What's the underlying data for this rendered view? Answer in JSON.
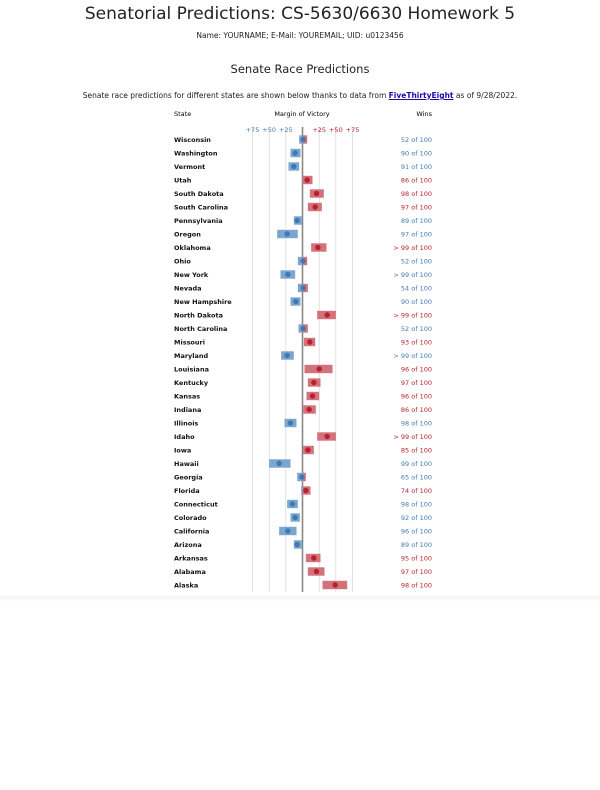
{
  "page": {
    "title": "Senatorial Predictions: CS-5630/6630 Homework 5",
    "meta": "Name: YOURNAME; E-Mail: YOUREMAIL; UID: u0123456",
    "section_title": "Senate Race Predictions",
    "intro_before": "Senate race predictions for different states are shown below thanks to data from ",
    "intro_link": "FiveThirtyEight",
    "intro_after": " as of 9/28/2022."
  },
  "colors": {
    "dem": "#3f7ab5",
    "dem_bar": "#7ba6cf",
    "rep": "#b8202f",
    "rep_bar": "#d2737b",
    "axis": "#888888"
  },
  "chart_data": {
    "type": "dot-range",
    "headers": {
      "state": "State",
      "margin": "Margin of Victory",
      "wins": "Wins"
    },
    "ticks": [
      {
        "label": "+75",
        "value": -75,
        "party": "D"
      },
      {
        "label": "+50",
        "value": -50,
        "party": "D"
      },
      {
        "label": "+25",
        "value": -25,
        "party": "D"
      },
      {
        "label": "+25",
        "value": 25,
        "party": "R"
      },
      {
        "label": "+50",
        "value": 50,
        "party": "R"
      },
      {
        "label": "+75",
        "value": 75,
        "party": "R"
      }
    ],
    "xlim": [
      -100,
      100
    ],
    "rows": [
      {
        "state": "Wisconsin",
        "margin": 1,
        "low": -5,
        "high": 7,
        "wins": "52 of 100",
        "party": "D"
      },
      {
        "state": "Washington",
        "margin": -11,
        "low": -18,
        "high": -3,
        "wins": "90 of 100",
        "party": "D"
      },
      {
        "state": "Vermont",
        "margin": -13,
        "low": -21,
        "high": -5,
        "wins": "91 of 100",
        "party": "D"
      },
      {
        "state": "Utah",
        "margin": 7,
        "low": 0,
        "high": 15,
        "wins": "86 of 100",
        "party": "R"
      },
      {
        "state": "South Dakota",
        "margin": 21,
        "low": 11,
        "high": 32,
        "wins": "98 of 100",
        "party": "R"
      },
      {
        "state": "South Carolina",
        "margin": 19,
        "low": 8,
        "high": 29,
        "wins": "97 of 100",
        "party": "R"
      },
      {
        "state": "Pennsylvania",
        "margin": -8,
        "low": -13,
        "high": -1,
        "wins": "89 of 100",
        "party": "D"
      },
      {
        "state": "Oregon",
        "margin": -23,
        "low": -38,
        "high": -7,
        "wins": "97 of 100",
        "party": "D"
      },
      {
        "state": "Oklahoma",
        "margin": 23,
        "low": 13,
        "high": 36,
        "wins": "> 99 of 100",
        "party": "R"
      },
      {
        "state": "Ohio",
        "margin": 1,
        "low": -7,
        "high": 7,
        "wins": "52 of 100",
        "party": "D"
      },
      {
        "state": "New York",
        "margin": -22,
        "low": -33,
        "high": -11,
        "wins": "> 99 of 100",
        "party": "D"
      },
      {
        "state": "Nevada",
        "margin": 1,
        "low": -7,
        "high": 8,
        "wins": "54 of 100",
        "party": "D"
      },
      {
        "state": "New Hampshire",
        "margin": -10,
        "low": -18,
        "high": -3,
        "wins": "90 of 100",
        "party": "D"
      },
      {
        "state": "North Dakota",
        "margin": 37,
        "low": 22,
        "high": 50,
        "wins": "> 99 of 100",
        "party": "R"
      },
      {
        "state": "North Carolina",
        "margin": 1,
        "low": -6,
        "high": 8,
        "wins": "52 of 100",
        "party": "D"
      },
      {
        "state": "Missouri",
        "margin": 11,
        "low": 2,
        "high": 19,
        "wins": "93 of 100",
        "party": "R"
      },
      {
        "state": "Maryland",
        "margin": -23,
        "low": -32,
        "high": -13,
        "wins": "> 99 of 100",
        "party": "D"
      },
      {
        "state": "Louisiana",
        "margin": 25,
        "low": 3,
        "high": 45,
        "wins": "96 of 100",
        "party": "R"
      },
      {
        "state": "Kentucky",
        "margin": 17,
        "low": 8,
        "high": 27,
        "wins": "97 of 100",
        "party": "R"
      },
      {
        "state": "Kansas",
        "margin": 15,
        "low": 6,
        "high": 25,
        "wins": "96 of 100",
        "party": "R"
      },
      {
        "state": "Indiana",
        "margin": 10,
        "low": 1,
        "high": 20,
        "wins": "86 of 100",
        "party": "R"
      },
      {
        "state": "Illinois",
        "margin": -18,
        "low": -27,
        "high": -9,
        "wins": "98 of 100",
        "party": "D"
      },
      {
        "state": "Idaho",
        "margin": 37,
        "low": 22,
        "high": 50,
        "wins": "> 99 of 100",
        "party": "R"
      },
      {
        "state": "Iowa",
        "margin": 8,
        "low": 1,
        "high": 17,
        "wins": "85 of 100",
        "party": "R"
      },
      {
        "state": "Hawaii",
        "margin": -35,
        "low": -50,
        "high": -18,
        "wins": "99 of 100",
        "party": "D"
      },
      {
        "state": "Georgia",
        "margin": -1,
        "low": -8,
        "high": 5,
        "wins": "65 of 100",
        "party": "D"
      },
      {
        "state": "Florida",
        "margin": 5,
        "low": -2,
        "high": 12,
        "wins": "74 of 100",
        "party": "R"
      },
      {
        "state": "Connecticut",
        "margin": -15,
        "low": -23,
        "high": -7,
        "wins": "98 of 100",
        "party": "D"
      },
      {
        "state": "Colorado",
        "margin": -11,
        "low": -18,
        "high": -4,
        "wins": "92 of 100",
        "party": "D"
      },
      {
        "state": "California",
        "margin": -22,
        "low": -35,
        "high": -9,
        "wins": "96 of 100",
        "party": "D"
      },
      {
        "state": "Arizona",
        "margin": -8,
        "low": -13,
        "high": -1,
        "wins": "89 of 100",
        "party": "D"
      },
      {
        "state": "Arkansas",
        "margin": 17,
        "low": 5,
        "high": 27,
        "wins": "95 of 100",
        "party": "R"
      },
      {
        "state": "Alabama",
        "margin": 21,
        "low": 8,
        "high": 33,
        "wins": "97 of 100",
        "party": "R"
      },
      {
        "state": "Alaska",
        "margin": 49,
        "low": 30,
        "high": 67,
        "wins": "98 of 100",
        "party": "R"
      }
    ]
  }
}
